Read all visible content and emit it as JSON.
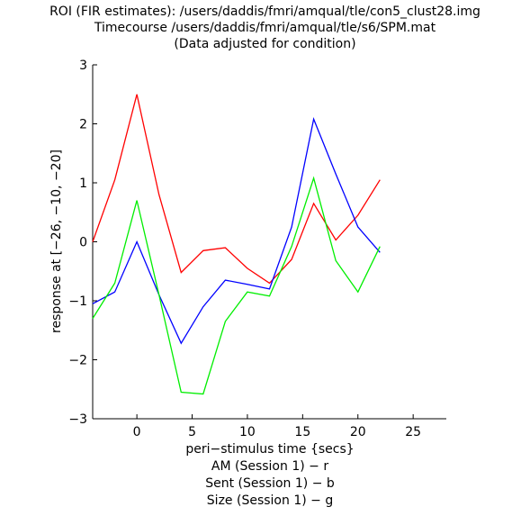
{
  "chart_data": {
    "type": "line",
    "title_lines": [
      "ROI (FIR estimates): /users/daddis/fmri/amqual/tle/con5_clust28.img",
      "Timecourse /users/daddis/fmri/amqual/tle/s6/SPM.mat",
      "(Data adjusted for condition)"
    ],
    "xlabel_lines": [
      "peri−stimulus time {secs}",
      "AM (Session 1) − r",
      "Sent (Session 1) − b",
      "Size (Session 1) − g"
    ],
    "ylabel": "response at [−26, −10, −20]",
    "xlim": [
      -4,
      28
    ],
    "ylim": [
      -3,
      3
    ],
    "xticks": [
      0,
      5,
      10,
      15,
      20,
      25
    ],
    "xtick_labels": [
      "0",
      "5",
      "10",
      "15",
      "20",
      "25"
    ],
    "yticks": [
      -3,
      -2,
      -1,
      0,
      1,
      2,
      3
    ],
    "ytick_labels": [
      "−3",
      "−2",
      "−1",
      "0",
      "1",
      "2",
      "3"
    ],
    "x": [
      -4,
      -2,
      0,
      2,
      4,
      6,
      8,
      10,
      12,
      14,
      16,
      18,
      20,
      22
    ],
    "series": [
      {
        "color": "#ff0000",
        "values": [
          0.0,
          1.05,
          2.5,
          0.8,
          -0.52,
          -0.15,
          -0.1,
          -0.45,
          -0.7,
          -0.3,
          0.65,
          0.03,
          0.45,
          1.05
        ]
      },
      {
        "color": "#0000ff",
        "values": [
          -1.05,
          -0.85,
          0.0,
          -0.9,
          -1.72,
          -1.1,
          -0.65,
          -0.72,
          -0.8,
          0.25,
          2.08,
          1.15,
          0.25,
          -0.18
        ]
      },
      {
        "color": "#00ee00",
        "values": [
          -1.3,
          -0.7,
          0.7,
          -0.9,
          -2.55,
          -2.58,
          -1.35,
          -0.85,
          -0.92,
          -0.08,
          1.08,
          -0.32,
          -0.85,
          -0.08
        ]
      }
    ],
    "grid": false,
    "legend": "none"
  }
}
